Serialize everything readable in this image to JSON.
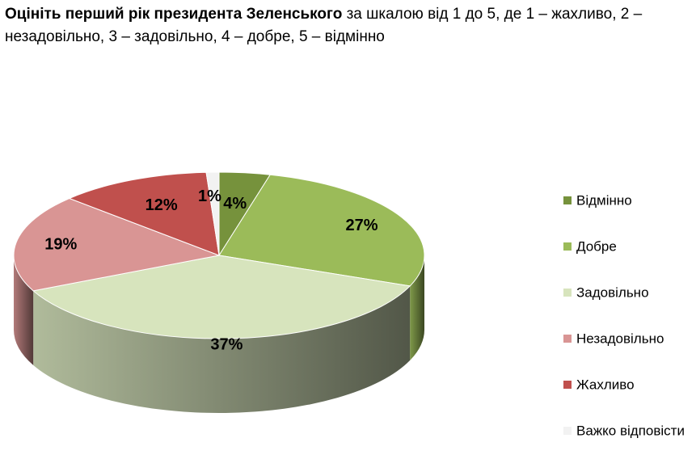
{
  "title": {
    "bold": "Оцініть перший рік президента Зеленського",
    "rest": " за шкалою від 1 до 5, де 1 – жахливо, 2 – незадовільно, 3 – задовільно, 4 – добре, 5 – відмінно"
  },
  "chart_data": {
    "type": "pie",
    "title": "Оцініть перший рік президента Зеленського за шкалою від 1 до 5, де 1 – жахливо, 2 – незадовільно, 3 – задовільно, 4 – добре, 5 – відмінно",
    "legend_position": "right",
    "slices": [
      {
        "label": "Відмінно",
        "value": 4,
        "display": "4%",
        "color": "#76923c"
      },
      {
        "label": "Добре",
        "value": 27,
        "display": "27%",
        "color": "#9bbb59"
      },
      {
        "label": "Задовільно",
        "value": 37,
        "display": "37%",
        "color": "#d7e4bd"
      },
      {
        "label": "Незадовільно",
        "value": 19,
        "display": "19%",
        "color": "#d99594"
      },
      {
        "label": "Жахливо",
        "value": 12,
        "display": "12%",
        "color": "#c0504d"
      },
      {
        "label": "Важко відповісти",
        "value": 1,
        "display": "1%",
        "color": "#f2f2f2"
      }
    ]
  }
}
